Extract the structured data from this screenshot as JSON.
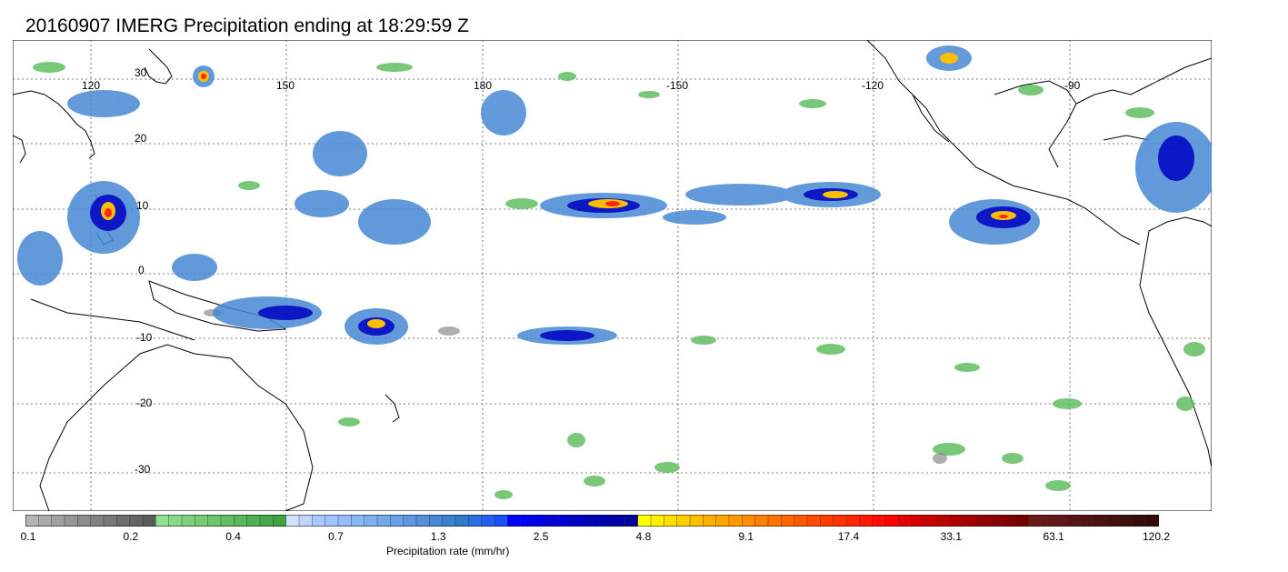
{
  "title": "20160907 IMERG Precipitation ending at 18:29:59 Z",
  "map": {
    "lon_labels": [
      "120",
      "150",
      "180",
      "-150",
      "-120",
      "-90"
    ],
    "lat_labels": [
      "30",
      "20",
      "10",
      "0",
      "-10",
      "-20",
      "-30"
    ],
    "gridlines": "dotted",
    "coastline_color": "#000000"
  },
  "colorbar": {
    "title": "Precipitation rate (mm/hr)",
    "tick_labels": [
      "0.1",
      "0.2",
      "0.4",
      "0.7",
      "1.3",
      "2.5",
      "4.8",
      "9.1",
      "17.4",
      "33.1",
      "63.1",
      "120.2"
    ],
    "colors": [
      "#b4b4b4",
      "#aaaaaa",
      "#a0a0a0",
      "#969696",
      "#8c8c8c",
      "#828282",
      "#787878",
      "#6e6e6e",
      "#646464",
      "#5a5a5a",
      "#8fe08f",
      "#86da86",
      "#7dd37d",
      "#74cc74",
      "#6bc56b",
      "#62be62",
      "#59b759",
      "#50b050",
      "#47a947",
      "#3ea23e",
      "#d2e2ff",
      "#bed6ff",
      "#aacaff",
      "#9fc4ff",
      "#94bdfa",
      "#89b6f5",
      "#7eaff0",
      "#73a8eb",
      "#68a0e6",
      "#5d98e0",
      "#5290da",
      "#4688d4",
      "#3a80ce",
      "#3078c8",
      "#2a6ee6",
      "#245ef0",
      "#1e4ef5",
      "#0000ff",
      "#0000f2",
      "#0000e6",
      "#0000da",
      "#0000ce",
      "#0000c2",
      "#0000b8",
      "#0000ae",
      "#0000a5",
      "#00009c",
      "#ffff00",
      "#ffef00",
      "#ffdf00",
      "#ffcf00",
      "#ffbf00",
      "#ffaf00",
      "#ffa500",
      "#ff9900",
      "#ff8d00",
      "#ff8000",
      "#ff7300",
      "#ff6600",
      "#ff5900",
      "#ff4c00",
      "#ff3f00",
      "#ff3200",
      "#ff2500",
      "#ff1800",
      "#ff0b00",
      "#ff0000",
      "#e60000",
      "#d40000",
      "#c80000",
      "#bc0000",
      "#b00000",
      "#a40000",
      "#980000",
      "#8c0000",
      "#800000",
      "#740000",
      "#6a1a1a",
      "#641818",
      "#5e1616",
      "#581414",
      "#521212",
      "#4c1010",
      "#460e0e",
      "#400c0c",
      "#3a0a0a",
      "#340808"
    ]
  }
}
